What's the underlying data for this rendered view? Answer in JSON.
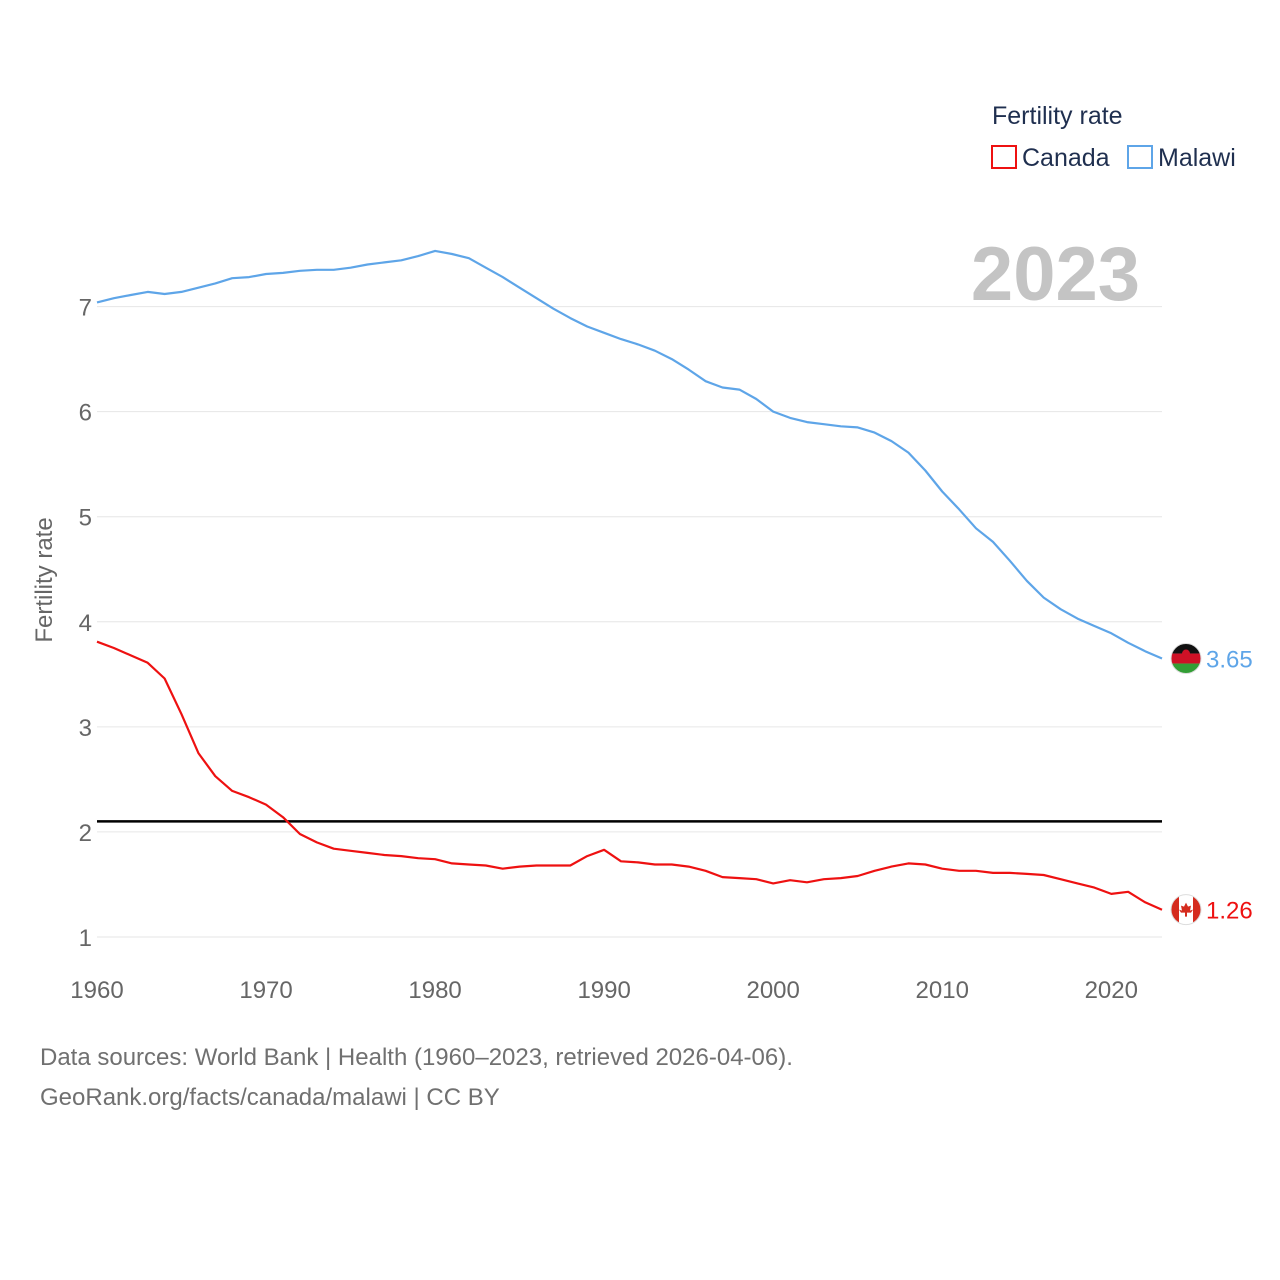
{
  "chart_data": {
    "type": "line",
    "ylabel": "Fertility rate",
    "xlabel": "",
    "xlim": [
      1960,
      2023
    ],
    "ylim": [
      0.8,
      7.9
    ],
    "x_ticks": [
      1960,
      1970,
      1980,
      1990,
      2000,
      2010,
      2020
    ],
    "y_ticks": [
      1,
      2,
      3,
      4,
      5,
      6,
      7
    ],
    "reference_line": 2.1,
    "current_year": "2023",
    "legend": {
      "title": "Fertility rate",
      "position": "top-right"
    },
    "series": [
      {
        "name": "Canada",
        "color": "#ee1111",
        "end_label": "1.26",
        "flag": "canada-flag",
        "x": [
          1960,
          1961,
          1962,
          1963,
          1964,
          1965,
          1966,
          1967,
          1968,
          1969,
          1970,
          1971,
          1972,
          1973,
          1974,
          1975,
          1976,
          1977,
          1978,
          1979,
          1980,
          1981,
          1982,
          1983,
          1984,
          1985,
          1986,
          1987,
          1988,
          1989,
          1990,
          1991,
          1992,
          1993,
          1994,
          1995,
          1996,
          1997,
          1998,
          1999,
          2000,
          2001,
          2002,
          2003,
          2004,
          2005,
          2006,
          2007,
          2008,
          2009,
          2010,
          2011,
          2012,
          2013,
          2014,
          2015,
          2016,
          2017,
          2018,
          2019,
          2020,
          2021,
          2022,
          2023
        ],
        "values": [
          3.81,
          3.75,
          3.68,
          3.61,
          3.46,
          3.12,
          2.75,
          2.53,
          2.39,
          2.33,
          2.26,
          2.14,
          1.98,
          1.9,
          1.84,
          1.82,
          1.8,
          1.78,
          1.77,
          1.75,
          1.74,
          1.7,
          1.69,
          1.68,
          1.65,
          1.67,
          1.68,
          1.68,
          1.68,
          1.77,
          1.83,
          1.72,
          1.71,
          1.69,
          1.69,
          1.67,
          1.63,
          1.57,
          1.56,
          1.55,
          1.51,
          1.54,
          1.52,
          1.55,
          1.56,
          1.58,
          1.63,
          1.67,
          1.7,
          1.69,
          1.65,
          1.63,
          1.63,
          1.61,
          1.61,
          1.6,
          1.59,
          1.55,
          1.51,
          1.47,
          1.41,
          1.43,
          1.33,
          1.26
        ]
      },
      {
        "name": "Malawi",
        "color": "#5ea5e8",
        "end_label": "3.65",
        "flag": "malawi-flag",
        "x": [
          1960,
          1961,
          1962,
          1963,
          1964,
          1965,
          1966,
          1967,
          1968,
          1969,
          1970,
          1971,
          1972,
          1973,
          1974,
          1975,
          1976,
          1977,
          1978,
          1979,
          1980,
          1981,
          1982,
          1983,
          1984,
          1985,
          1986,
          1987,
          1988,
          1989,
          1990,
          1991,
          1992,
          1993,
          1994,
          1995,
          1996,
          1997,
          1998,
          1999,
          2000,
          2001,
          2002,
          2003,
          2004,
          2005,
          2006,
          2007,
          2008,
          2009,
          2010,
          2011,
          2012,
          2013,
          2014,
          2015,
          2016,
          2017,
          2018,
          2019,
          2020,
          2021,
          2022,
          2023
        ],
        "values": [
          7.04,
          7.08,
          7.11,
          7.14,
          7.12,
          7.14,
          7.18,
          7.22,
          7.27,
          7.28,
          7.31,
          7.32,
          7.34,
          7.35,
          7.35,
          7.37,
          7.4,
          7.42,
          7.44,
          7.48,
          7.53,
          7.5,
          7.46,
          7.37,
          7.28,
          7.18,
          7.08,
          6.98,
          6.89,
          6.81,
          6.75,
          6.69,
          6.64,
          6.58,
          6.5,
          6.4,
          6.29,
          6.23,
          6.21,
          6.12,
          6.0,
          5.94,
          5.9,
          5.88,
          5.86,
          5.85,
          5.8,
          5.72,
          5.61,
          5.44,
          5.24,
          5.07,
          4.89,
          4.76,
          4.58,
          4.39,
          4.23,
          4.12,
          4.03,
          3.96,
          3.89,
          3.8,
          3.72,
          3.65
        ]
      }
    ]
  },
  "footer": {
    "sources": "Data sources: World Bank | Health (1960–2023, retrieved 2026-04-06).",
    "credit": "GeoRank.org/facts/canada/malawi | CC BY"
  }
}
